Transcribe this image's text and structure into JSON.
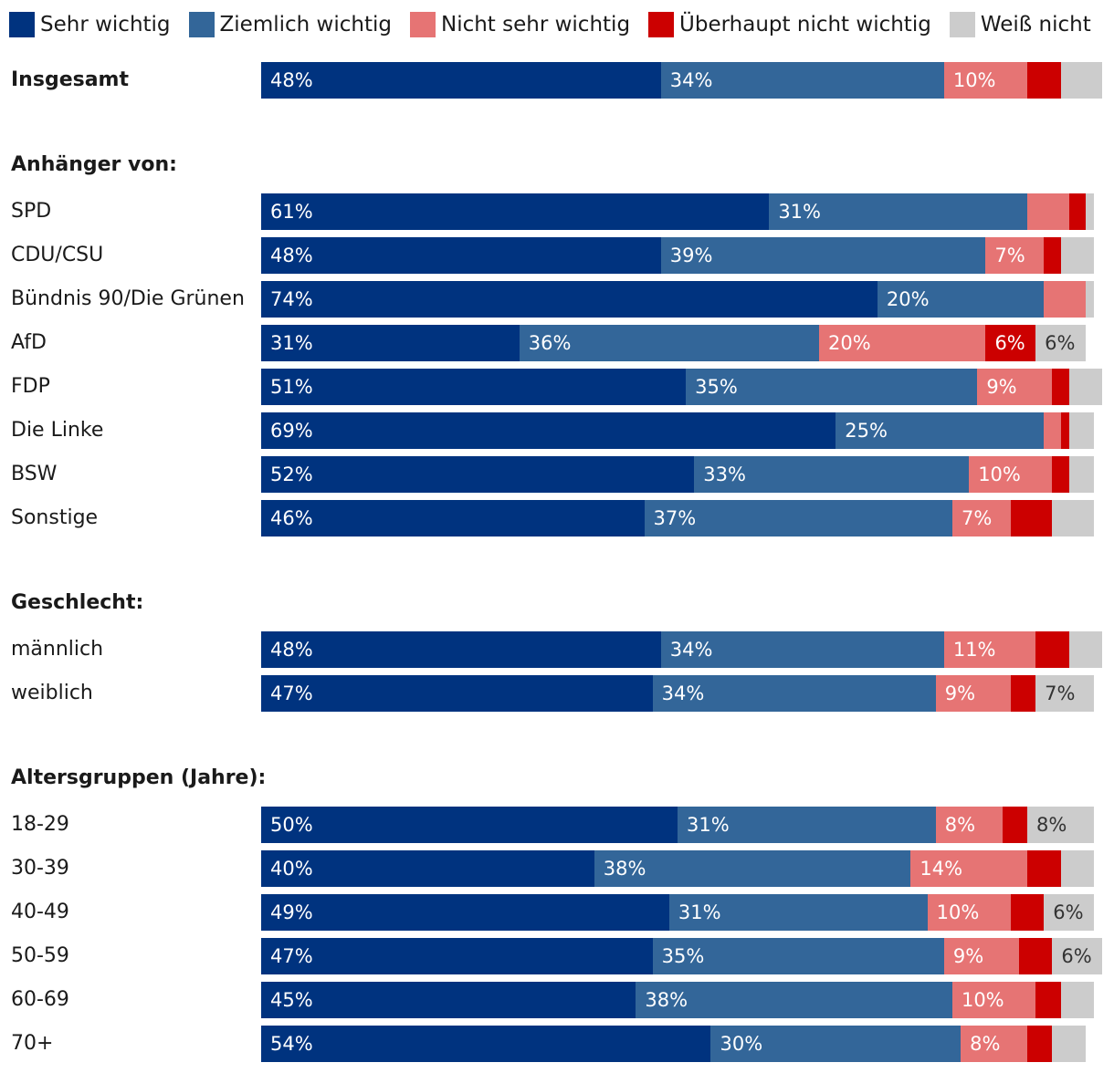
{
  "chart_data": {
    "type": "bar",
    "orientation": "horizontal",
    "stacked": true,
    "legend_position": "top",
    "grid": false,
    "series": [
      {
        "name": "Sehr wichtig",
        "color": "#00337F"
      },
      {
        "name": "Ziemlich wichtig",
        "color": "#336699"
      },
      {
        "name": "Nicht sehr wichtig",
        "color": "#E67474"
      },
      {
        "name": "Überhaupt nicht wichtig",
        "color": "#CC0000"
      },
      {
        "name": "Weiß nicht",
        "color": "#CCCCCC"
      }
    ],
    "label_colors": [
      "#ffffff",
      "#ffffff",
      "#ffffff",
      "#ffffff",
      "#333333"
    ],
    "groups": [
      {
        "heading": "",
        "rows": [
          {
            "label": "Insgesamt",
            "bold": true,
            "values": [
              48,
              34,
              10,
              4,
              5
            ],
            "labels": [
              "48%",
              "34%",
              "10%",
              "",
              ""
            ]
          }
        ]
      },
      {
        "heading": "Anhänger von:",
        "rows": [
          {
            "label": "SPD",
            "values": [
              61,
              31,
              5,
              2,
              1
            ],
            "labels": [
              "61%",
              "31%",
              "",
              "",
              ""
            ]
          },
          {
            "label": "CDU/CSU",
            "values": [
              48,
              39,
              7,
              2,
              4
            ],
            "labels": [
              "48%",
              "39%",
              "7%",
              "",
              ""
            ]
          },
          {
            "label": "Bündnis 90/Die Grünen",
            "values": [
              74,
              20,
              5,
              0,
              1
            ],
            "labels": [
              "74%",
              "20%",
              "",
              "",
              ""
            ]
          },
          {
            "label": "AfD",
            "values": [
              31,
              36,
              20,
              6,
              6
            ],
            "labels": [
              "31%",
              "36%",
              "20%",
              "6%",
              "6%"
            ]
          },
          {
            "label": "FDP",
            "values": [
              51,
              35,
              9,
              2,
              4
            ],
            "labels": [
              "51%",
              "35%",
              "9%",
              "",
              ""
            ]
          },
          {
            "label": "Die Linke",
            "values": [
              69,
              25,
              2,
              1,
              3
            ],
            "labels": [
              "69%",
              "25%",
              "",
              "",
              ""
            ]
          },
          {
            "label": "BSW",
            "values": [
              52,
              33,
              10,
              2,
              3
            ],
            "labels": [
              "52%",
              "33%",
              "10%",
              "",
              ""
            ]
          },
          {
            "label": "Sonstige",
            "values": [
              46,
              37,
              7,
              5,
              5
            ],
            "labels": [
              "46%",
              "37%",
              "7%",
              "",
              ""
            ]
          }
        ]
      },
      {
        "heading": "Geschlecht:",
        "rows": [
          {
            "label": "männlich",
            "values": [
              48,
              34,
              11,
              4,
              4
            ],
            "labels": [
              "48%",
              "34%",
              "11%",
              "",
              ""
            ]
          },
          {
            "label": "weiblich",
            "values": [
              47,
              34,
              9,
              3,
              7
            ],
            "labels": [
              "47%",
              "34%",
              "9%",
              "",
              "7%"
            ]
          }
        ]
      },
      {
        "heading": "Altersgruppen (Jahre):",
        "rows": [
          {
            "label": "18-29",
            "values": [
              50,
              31,
              8,
              3,
              8
            ],
            "labels": [
              "50%",
              "31%",
              "8%",
              "",
              "8%"
            ]
          },
          {
            "label": "30-39",
            "values": [
              40,
              38,
              14,
              4,
              4
            ],
            "labels": [
              "40%",
              "38%",
              "14%",
              "",
              ""
            ]
          },
          {
            "label": "40-49",
            "values": [
              49,
              31,
              10,
              4,
              6
            ],
            "labels": [
              "49%",
              "31%",
              "10%",
              "",
              "6%"
            ]
          },
          {
            "label": "50-59",
            "values": [
              47,
              35,
              9,
              4,
              6
            ],
            "labels": [
              "47%",
              "35%",
              "9%",
              "",
              "6%"
            ]
          },
          {
            "label": "60-69",
            "values": [
              45,
              38,
              10,
              3,
              4
            ],
            "labels": [
              "45%",
              "38%",
              "10%",
              "",
              ""
            ]
          },
          {
            "label": "70+",
            "values": [
              54,
              30,
              8,
              3,
              4
            ],
            "labels": [
              "54%",
              "30%",
              "8%",
              "",
              ""
            ]
          }
        ]
      }
    ]
  }
}
